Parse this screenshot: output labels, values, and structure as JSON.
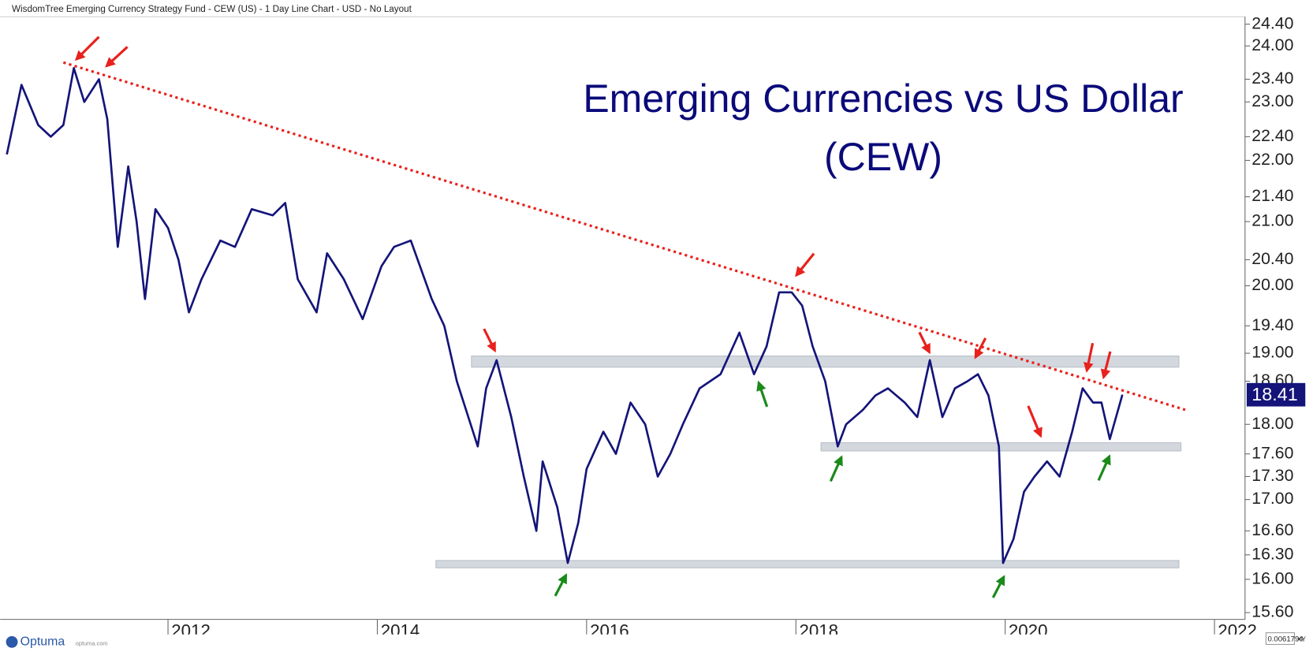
{
  "header": {
    "text": "WisdomTree Emerging Currency Strategy Fund - CEW (US) - 1 Day Line Chart - USD - No Layout"
  },
  "footer": {
    "logo": "Optuma",
    "site": "optuma.com",
    "scale": "0.0061794",
    "mode": "XY"
  },
  "chart_data": {
    "type": "line",
    "title": "Emerging Currencies vs US Dollar (CEW)",
    "log_scale": true,
    "color": "#14147a",
    "x": [
      2010.46,
      2010.6,
      2010.76,
      2010.88,
      2011.0,
      2011.1,
      2011.2,
      2011.34,
      2011.42,
      2011.52,
      2011.62,
      2011.7,
      2011.78,
      2011.88,
      2012.0,
      2012.1,
      2012.2,
      2012.32,
      2012.5,
      2012.64,
      2012.8,
      2013.0,
      2013.12,
      2013.24,
      2013.42,
      2013.52,
      2013.68,
      2013.86,
      2014.04,
      2014.16,
      2014.32,
      2014.52,
      2014.64,
      2014.76,
      2014.96,
      2015.04,
      2015.14,
      2015.28,
      2015.4,
      2015.52,
      2015.58,
      2015.72,
      2015.82,
      2015.92,
      2016.0,
      2016.16,
      2016.28,
      2016.42,
      2016.56,
      2016.68,
      2016.8,
      2016.92,
      2017.08,
      2017.28,
      2017.46,
      2017.6,
      2017.72,
      2017.84,
      2017.96,
      2018.06,
      2018.16,
      2018.28,
      2018.4,
      2018.48,
      2018.64,
      2018.76,
      2018.88,
      2019.04,
      2019.16,
      2019.28,
      2019.4,
      2019.52,
      2019.64,
      2019.74,
      2019.84,
      2019.94,
      2019.98,
      2020.08,
      2020.18,
      2020.28,
      2020.4,
      2020.52,
      2020.64,
      2020.74,
      2020.84,
      2020.92,
      2021.0,
      2021.12
    ],
    "values": [
      22.1,
      23.3,
      22.6,
      22.4,
      22.6,
      23.6,
      23.0,
      23.4,
      22.7,
      20.6,
      21.9,
      21.0,
      19.8,
      21.2,
      20.9,
      20.4,
      19.6,
      20.1,
      20.7,
      20.6,
      21.2,
      21.1,
      21.3,
      20.1,
      19.6,
      20.5,
      20.1,
      19.5,
      20.3,
      20.6,
      20.7,
      19.8,
      19.4,
      18.6,
      17.7,
      18.5,
      18.9,
      18.1,
      17.3,
      16.6,
      17.5,
      16.9,
      16.2,
      16.7,
      17.4,
      17.9,
      17.6,
      18.3,
      18.0,
      17.3,
      17.6,
      18.0,
      18.5,
      18.7,
      19.3,
      18.7,
      19.1,
      19.9,
      19.9,
      19.7,
      19.1,
      18.6,
      17.7,
      18.0,
      18.2,
      18.4,
      18.5,
      18.3,
      18.1,
      18.9,
      18.1,
      18.5,
      18.6,
      18.7,
      18.4,
      17.7,
      16.2,
      16.5,
      17.1,
      17.3,
      17.5,
      17.3,
      17.9,
      18.5,
      18.3,
      18.3,
      17.8,
      18.41
    ],
    "xlim": [
      2010.46,
      2022.28
    ],
    "xticks": [
      2012,
      2014,
      2016,
      2018,
      2020,
      2022
    ],
    "ylim": [
      15.52,
      24.57
    ],
    "yticks": [
      {
        "value": 24.4,
        "label": "24.40"
      },
      {
        "value": 24.0,
        "label": "24.00"
      },
      {
        "value": 23.4,
        "label": "23.40"
      },
      {
        "value": 23.0,
        "label": "23.00"
      },
      {
        "value": 22.4,
        "label": "22.40"
      },
      {
        "value": 22.0,
        "label": "22.00"
      },
      {
        "value": 21.4,
        "label": "21.40"
      },
      {
        "value": 21.0,
        "label": "21.00"
      },
      {
        "value": 20.4,
        "label": "20.40"
      },
      {
        "value": 20.0,
        "label": "20.00"
      },
      {
        "value": 19.4,
        "label": "19.40"
      },
      {
        "value": 19.0,
        "label": "19.00"
      },
      {
        "value": 18.6,
        "label": "18.60"
      },
      {
        "value": 18.0,
        "label": "18.00"
      },
      {
        "value": 17.6,
        "label": "17.60"
      },
      {
        "value": 17.3,
        "label": "17.30"
      },
      {
        "value": 17.0,
        "label": "17.00"
      },
      {
        "value": 16.6,
        "label": "16.60"
      },
      {
        "value": 16.3,
        "label": "16.30"
      },
      {
        "value": 16.0,
        "label": "16.00"
      },
      {
        "value": 15.6,
        "label": "15.60"
      }
    ],
    "trendline": {
      "color": "#e8211c",
      "x": [
        2011.0,
        2021.72
      ],
      "y": [
        23.7,
        18.2
      ]
    },
    "bands": [
      {
        "x": [
          2014.9,
          2021.66
        ],
        "y": [
          18.8,
          18.96
        ]
      },
      {
        "x": [
          2018.24,
          2021.68
        ],
        "y": [
          17.64,
          17.75
        ]
      },
      {
        "x": [
          2014.56,
          2021.66
        ],
        "y": [
          16.14,
          16.23
        ]
      }
    ],
    "band_color": "#d3d8de"
  }
}
